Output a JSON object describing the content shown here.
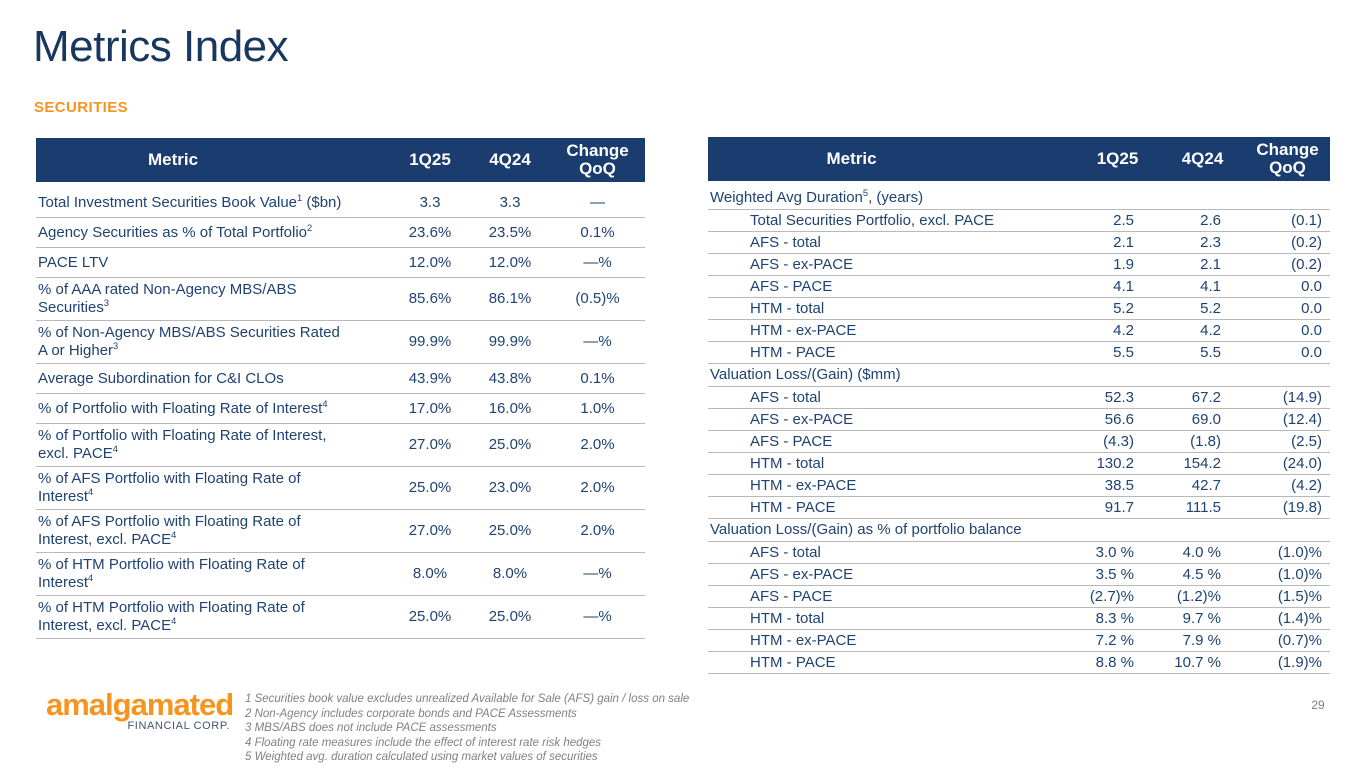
{
  "title": "Metrics Index",
  "section_label": "SECURITIES",
  "colors": {
    "title_navy": "#17375E",
    "header_bg": "#1B3C6E",
    "cell_text": "#1E4272",
    "accent_orange": "#F7941D",
    "separator_gray": "#B9B9B9",
    "footnote_gray": "#808080"
  },
  "left_table": {
    "headers": [
      "Metric",
      "1Q25",
      "4Q24",
      "Change QoQ"
    ],
    "rows": [
      {
        "metric": "Total Investment Securities Book Value^1^ ($bn)",
        "q1": "3.3",
        "q4": "3.3",
        "chg": "—"
      },
      {
        "metric": "Agency Securities as % of Total Portfolio^2^",
        "q1": "23.6%",
        "q4": "23.5%",
        "chg": "0.1%"
      },
      {
        "metric": "PACE LTV",
        "q1": "12.0%",
        "q4": "12.0%",
        "chg": "—%"
      },
      {
        "metric": "% of AAA rated Non-Agency MBS/ABS Securities^3^",
        "q1": "85.6%",
        "q4": "86.1%",
        "chg": "(0.5)%"
      },
      {
        "metric": "% of Non-Agency MBS/ABS Securities Rated A or Higher^3^",
        "q1": "99.9%",
        "q4": "99.9%",
        "chg": "—%"
      },
      {
        "metric": "Average Subordination for C&I CLOs",
        "q1": "43.9%",
        "q4": "43.8%",
        "chg": "0.1%"
      },
      {
        "metric": "% of Portfolio with Floating Rate of Interest^4^",
        "q1": "17.0%",
        "q4": "16.0%",
        "chg": "1.0%"
      },
      {
        "metric": "% of Portfolio with Floating Rate of Interest, excl. PACE^4^",
        "q1": "27.0%",
        "q4": "25.0%",
        "chg": "2.0%"
      },
      {
        "metric": "% of AFS Portfolio with Floating Rate of Interest^4^",
        "q1": "25.0%",
        "q4": "23.0%",
        "chg": "2.0%"
      },
      {
        "metric": "% of AFS Portfolio with Floating Rate of Interest, excl. PACE^4^",
        "q1": "27.0%",
        "q4": "25.0%",
        "chg": "2.0%"
      },
      {
        "metric": "% of HTM Portfolio with Floating Rate of Interest^4^",
        "q1": "8.0%",
        "q4": "8.0%",
        "chg": "—%"
      },
      {
        "metric": "% of HTM Portfolio with Floating Rate of Interest, excl. PACE^4^",
        "q1": "25.0%",
        "q4": "25.0%",
        "chg": "—%"
      }
    ]
  },
  "right_table": {
    "headers": [
      "Metric",
      "1Q25",
      "4Q24",
      "Change QoQ"
    ],
    "rows": [
      {
        "type": "section",
        "metric": "Weighted Avg Duration^5^, (years)"
      },
      {
        "indent": true,
        "metric": "Total Securities Portfolio, excl. PACE",
        "q1": "2.5",
        "q4": "2.6",
        "chg": "(0.1)"
      },
      {
        "indent": true,
        "metric": "AFS - total",
        "q1": "2.1",
        "q4": "2.3",
        "chg": "(0.2)"
      },
      {
        "indent": true,
        "metric": "AFS - ex-PACE",
        "q1": "1.9",
        "q4": "2.1",
        "chg": "(0.2)"
      },
      {
        "indent": true,
        "metric": "AFS - PACE",
        "q1": "4.1",
        "q4": "4.1",
        "chg": "0.0"
      },
      {
        "indent": true,
        "metric": "HTM - total",
        "q1": "5.2",
        "q4": "5.2",
        "chg": "0.0"
      },
      {
        "indent": true,
        "metric": "HTM - ex-PACE",
        "q1": "4.2",
        "q4": "4.2",
        "chg": "0.0"
      },
      {
        "indent": true,
        "metric": "HTM - PACE",
        "q1": "5.5",
        "q4": "5.5",
        "chg": "0.0"
      },
      {
        "type": "section",
        "metric": "Valuation Loss/(Gain) ($mm)"
      },
      {
        "indent": true,
        "metric": "AFS - total",
        "q1": "52.3",
        "q4": "67.2",
        "chg": "(14.9)"
      },
      {
        "indent": true,
        "metric": "AFS - ex-PACE",
        "q1": "56.6",
        "q4": "69.0",
        "chg": "(12.4)"
      },
      {
        "indent": true,
        "metric": "AFS - PACE",
        "q1": "(4.3)",
        "q4": "(1.8)",
        "chg": "(2.5)"
      },
      {
        "indent": true,
        "metric": "HTM - total",
        "q1": "130.2",
        "q4": "154.2",
        "chg": "(24.0)"
      },
      {
        "indent": true,
        "metric": "HTM - ex-PACE",
        "q1": "38.5",
        "q4": "42.7",
        "chg": "(4.2)"
      },
      {
        "indent": true,
        "metric": "HTM - PACE",
        "q1": "91.7",
        "q4": "111.5",
        "chg": "(19.8)"
      },
      {
        "type": "section",
        "metric": "Valuation Loss/(Gain) as % of portfolio balance"
      },
      {
        "indent": true,
        "metric": "AFS - total",
        "q1": "3.0 %",
        "q4": "4.0 %",
        "chg": "(1.0)%"
      },
      {
        "indent": true,
        "metric": "AFS - ex-PACE",
        "q1": "3.5 %",
        "q4": "4.5 %",
        "chg": "(1.0)%"
      },
      {
        "indent": true,
        "metric": "AFS - PACE",
        "q1": "(2.7)%",
        "q4": "(1.2)%",
        "chg": "(1.5)%"
      },
      {
        "indent": true,
        "metric": "HTM - total",
        "q1": "8.3 %",
        "q4": "9.7 %",
        "chg": "(1.4)%"
      },
      {
        "indent": true,
        "metric": "HTM - ex-PACE",
        "q1": "7.2 %",
        "q4": "7.9 %",
        "chg": "(0.7)%"
      },
      {
        "indent": true,
        "metric": "HTM - PACE",
        "q1": "8.8 %",
        "q4": "10.7 %",
        "chg": "(1.9)%"
      }
    ]
  },
  "footer": {
    "logo_text": "amalgamated",
    "logo_subtext": "FINANCIAL CORP.",
    "footnotes": [
      "1 Securities book value excludes unrealized Available for Sale (AFS) gain / loss on sale",
      "2 Non-Agency includes corporate bonds and PACE Assessments",
      "3 MBS/ABS does not include PACE assessments",
      "4 Floating rate measures include the effect of interest rate risk hedges",
      "5 Weighted avg. duration calculated using market values of securities"
    ],
    "page_number": "29"
  }
}
